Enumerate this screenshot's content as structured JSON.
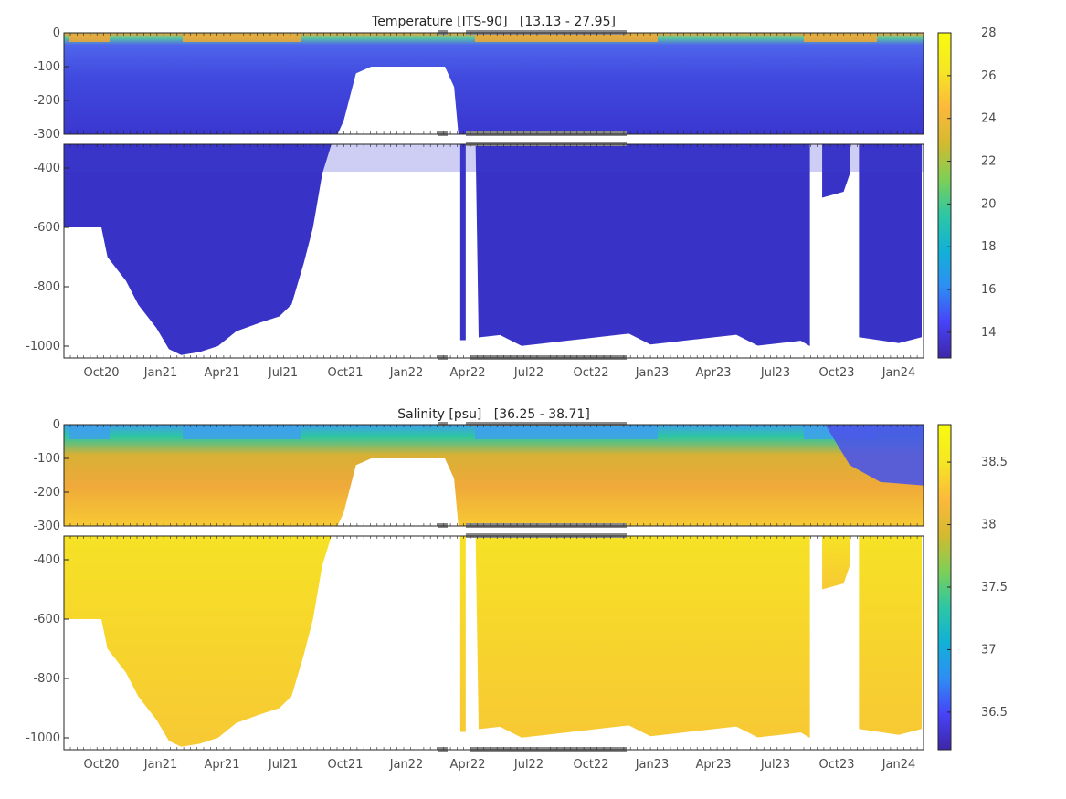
{
  "chart_data": [
    {
      "type": "heatmap",
      "title": "Temperature [ITS-90]   [13.13 - 27.95]",
      "x_tick_labels": [
        "Oct20",
        "Jan21",
        "Apr21",
        "Jul21",
        "Oct21",
        "Jan22",
        "Apr22",
        "Jul22",
        "Oct22",
        "Jan23",
        "Apr23",
        "Jul23",
        "Oct23",
        "Jan24"
      ],
      "upper_y_ticks": [
        0,
        -100,
        -200,
        -300
      ],
      "lower_y_ticks": [
        -400,
        -600,
        -800,
        -1000
      ],
      "upper_ylim": [
        -300,
        0
      ],
      "lower_ylim": [
        -1040,
        -320
      ],
      "colorbar": {
        "min": 12.8,
        "max": 28,
        "ticks": [
          14,
          16,
          18,
          20,
          22,
          24,
          26,
          28
        ],
        "tick_labels": [
          "14",
          "16",
          "18",
          "20",
          "22",
          "24",
          "26",
          "28"
        ],
        "colormap": [
          "#3e26a8",
          "#4743f8",
          "#2d8ef4",
          "#12b1d6",
          "#2dc7a4",
          "#7ecf55",
          "#d3ba2f",
          "#fcb93b",
          "#f5e524",
          "#f9fb0e"
        ]
      },
      "colors": {
        "surface": "#4f65ec",
        "mid": "#3a3ad4",
        "deep": "#3833c6",
        "warm_layer": "#f5a733"
      },
      "deep_profile_date_index": [
        0,
        0.5,
        1,
        1.5,
        2,
        2.5,
        3,
        3.5,
        3.7,
        4.05
      ],
      "deep_profile_max_depth": [
        -600,
        -800,
        -900,
        -1000,
        -1030,
        -1020,
        -960,
        -920,
        -900,
        -870
      ]
    },
    {
      "type": "heatmap",
      "title": "Salinity [psu]   [36.25 - 38.71]",
      "x_tick_labels": [
        "Oct20",
        "Jan21",
        "Apr21",
        "Jul21",
        "Oct21",
        "Jan22",
        "Apr22",
        "Jul22",
        "Oct22",
        "Jan23",
        "Apr23",
        "Jul23",
        "Oct23",
        "Jan24"
      ],
      "upper_y_ticks": [
        0,
        -100,
        -200,
        -300
      ],
      "lower_y_ticks": [
        -400,
        -600,
        -800,
        -1000
      ],
      "upper_ylim": [
        -300,
        0
      ],
      "lower_ylim": [
        -1040,
        -320
      ],
      "colorbar": {
        "min": 36.2,
        "max": 38.8,
        "ticks": [
          36.5,
          37,
          37.5,
          38,
          38.5
        ],
        "tick_labels": [
          "36.5",
          "37",
          "37.5",
          "38",
          "38.5"
        ],
        "colormap": [
          "#3e26a8",
          "#4743f8",
          "#2d8ef4",
          "#12b1d6",
          "#2dc7a4",
          "#7ecf55",
          "#d3ba2f",
          "#fcb93b",
          "#f5e524",
          "#f9fb0e"
        ]
      },
      "colors": {
        "surface": "#3ea0ec",
        "mid": "#e5a93a",
        "deep": "#f5d42c",
        "warm_layer": "#2bc7a0"
      }
    }
  ]
}
